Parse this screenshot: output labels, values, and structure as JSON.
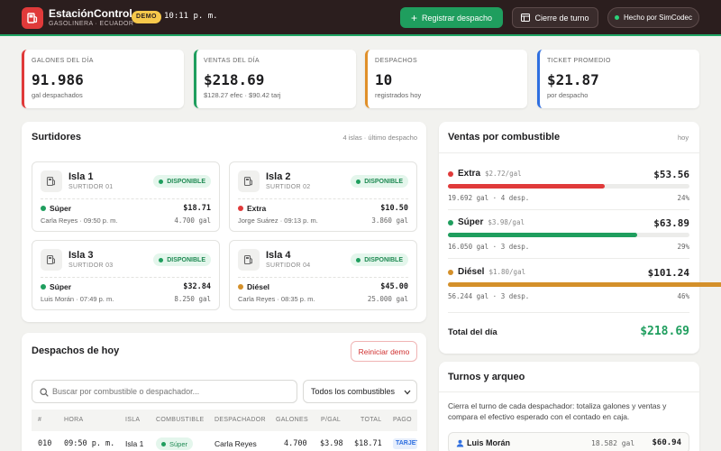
{
  "header": {
    "app_name": "EstaciónControl",
    "app_subtitle": "GASOLINERA · ECUADOR",
    "demo_badge": "DEMO",
    "clock": "10:11 p. m.",
    "register_button": "Registrar despacho",
    "close_shift_button": "Cierre de turno",
    "made_by": "Hecho por SimCodec"
  },
  "stats": [
    {
      "label": "GALONES DEL DÍA",
      "value": "91.986",
      "sub": "gal despachados",
      "color": "#e03a3a"
    },
    {
      "label": "VENTAS DEL DÍA",
      "value": "$218.69",
      "sub": "$128.27 efec · $90.42 tarj",
      "color": "#1f9e5e"
    },
    {
      "label": "DESPACHOS",
      "value": "10",
      "sub": "registrados hoy",
      "color": "#e0902a"
    },
    {
      "label": "TICKET PROMEDIO",
      "value": "$21.87",
      "sub": "por despacho",
      "color": "#2f6fe0"
    }
  ],
  "pumps_panel": {
    "title": "Surtidores",
    "meta": "4 islas · último despacho",
    "pumps": [
      {
        "name": "Isla 1",
        "id": "SURTIDOR 01",
        "status": "DISPONIBLE",
        "fuel": "Súper",
        "fuel_color": "#1f9e5e",
        "amount": "$18.71",
        "who": "Carla Reyes · 09:50 p. m.",
        "gallons": "4.700 gal"
      },
      {
        "name": "Isla 2",
        "id": "SURTIDOR 02",
        "status": "DISPONIBLE",
        "fuel": "Extra",
        "fuel_color": "#e03a3a",
        "amount": "$10.50",
        "who": "Jorge Suárez · 09:13 p. m.",
        "gallons": "3.860 gal"
      },
      {
        "name": "Isla 3",
        "id": "SURTIDOR 03",
        "status": "DISPONIBLE",
        "fuel": "Súper",
        "fuel_color": "#1f9e5e",
        "amount": "$32.84",
        "who": "Luis Morán · 07:49 p. m.",
        "gallons": "8.250 gal"
      },
      {
        "name": "Isla 4",
        "id": "SURTIDOR 04",
        "status": "DISPONIBLE",
        "fuel": "Diésel",
        "fuel_color": "#d4902a",
        "amount": "$45.00",
        "who": "Carla Reyes · 08:35 p. m.",
        "gallons": "25.000 gal"
      }
    ]
  },
  "sales_panel": {
    "title": "Ventas por combustible",
    "period": "hoy",
    "fuels": [
      {
        "name": "Extra",
        "price": "$2.72/gal",
        "amount": "$53.56",
        "meta": "19.692 gal · 4 desp.",
        "pct_label": "24%",
        "share": 0.24,
        "color": "#e03a3a"
      },
      {
        "name": "Súper",
        "price": "$3.98/gal",
        "amount": "$63.89",
        "meta": "16.050 gal · 3 desp.",
        "pct_label": "29%",
        "share": 0.29,
        "color": "#1f9e5e"
      },
      {
        "name": "Diésel",
        "price": "$1.80/gal",
        "amount": "$101.24",
        "meta": "56.244 gal · 3 desp.",
        "pct_label": "46%",
        "share": 0.46,
        "color": "#d4902a"
      }
    ],
    "total_label": "Total del día",
    "total_value": "$218.69"
  },
  "dispatch_panel": {
    "title": "Despachos de hoy",
    "reset_button": "Reiniciar demo",
    "search_placeholder": "Buscar por combustible o despachador...",
    "filter_value": "Todos los combustibles",
    "columns": [
      "#",
      "HORA",
      "ISLA",
      "COMBUSTIBLE",
      "DESPACHADOR",
      "GALONES",
      "P/GAL",
      "TOTAL",
      "PAGO"
    ],
    "rows": [
      {
        "num": "010",
        "time": "09:50 p. m.",
        "island": "Isla 1",
        "fuel": "Súper",
        "attendant": "Carla Reyes",
        "gallons": "4.700",
        "ppg": "$3.98",
        "total": "$18.71",
        "payment": "TARJETA"
      }
    ]
  },
  "shifts_panel": {
    "title": "Turnos y arqueo",
    "description": "Cierra el turno de cada despachador: totaliza galones y ventas y compara el efectivo esperado con el contado en caja.",
    "row": {
      "name": "Luis Morán",
      "gallons": "18.582 gal",
      "amount": "$60.94"
    }
  }
}
